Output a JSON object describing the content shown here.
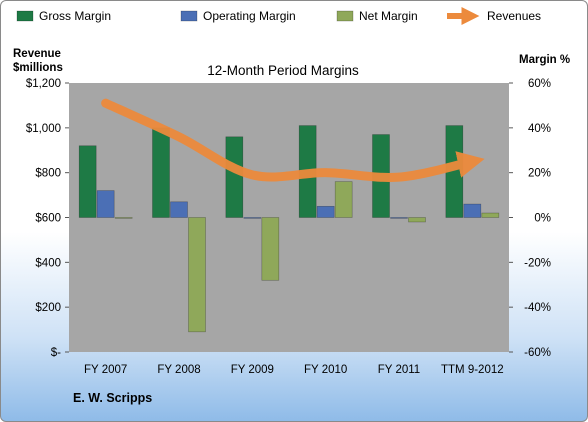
{
  "company": "E. W. Scripps",
  "chart_data": {
    "type": "bar",
    "title": "12-Month Period Margins",
    "categories": [
      "FY 2007",
      "FY 2008",
      "FY 2009",
      "FY 2010",
      "FY 2011",
      "TTM 9-2012"
    ],
    "left_axis": {
      "title_lines": [
        "Revenue",
        "$millions"
      ],
      "ticks": [
        0,
        200,
        400,
        600,
        800,
        1000,
        1200
      ],
      "tick_labels": [
        "$-",
        "$200",
        "$400",
        "$600",
        "$800",
        "$1,000",
        "$1,200"
      ],
      "range": [
        0,
        1200
      ]
    },
    "right_axis": {
      "title": "Margin %",
      "ticks": [
        -60,
        -40,
        -20,
        0,
        20,
        40,
        60
      ],
      "tick_labels": [
        "-60%",
        "-40%",
        "-20%",
        "0%",
        "20%",
        "40%",
        "60%"
      ],
      "range": [
        -60,
        60
      ]
    },
    "series": [
      {
        "name": "Gross Margin",
        "type": "bar",
        "axis": "right",
        "color": "#1e7a45",
        "values": [
          32,
          40,
          36,
          41,
          37,
          41
        ]
      },
      {
        "name": "Operating Margin",
        "type": "bar",
        "axis": "right",
        "color": "#4b6fb5",
        "values": [
          12,
          7,
          0,
          5,
          0,
          6
        ]
      },
      {
        "name": "Net Margin",
        "type": "bar",
        "axis": "right",
        "color": "#8fa85a",
        "values": [
          0,
          -51,
          -28,
          16,
          -2,
          2
        ]
      },
      {
        "name": "Revenues",
        "type": "line",
        "axis": "left",
        "color": "#ec8a3c",
        "values": [
          1110,
          960,
          790,
          800,
          780,
          850
        ]
      }
    ],
    "legend_position": "top",
    "plot_background": "#a6a6a6"
  }
}
